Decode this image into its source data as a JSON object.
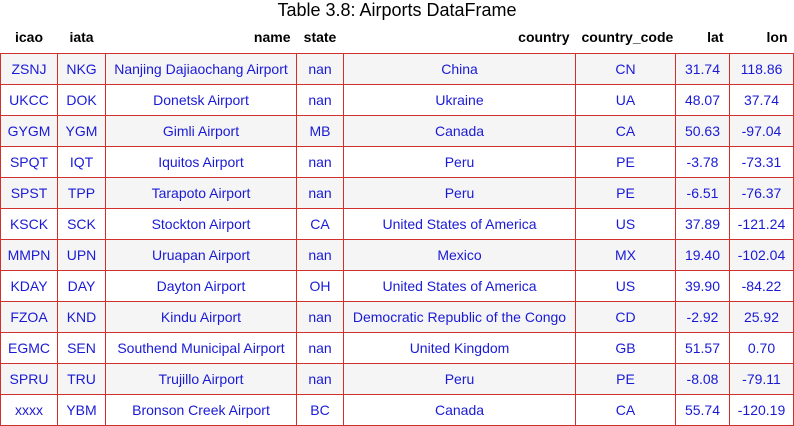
{
  "caption": "Table 3.8: Airports DataFrame",
  "columns": [
    "icao",
    "iata",
    "name",
    "state",
    "country",
    "country_code",
    "lat",
    "lon"
  ],
  "rows": [
    [
      "ZSNJ",
      "NKG",
      "Nanjing Dajiaochang Airport",
      "nan",
      "China",
      "CN",
      "31.74",
      "118.86"
    ],
    [
      "UKCC",
      "DOK",
      "Donetsk Airport",
      "nan",
      "Ukraine",
      "UA",
      "48.07",
      "37.74"
    ],
    [
      "GYGM",
      "YGM",
      "Gimli Airport",
      "MB",
      "Canada",
      "CA",
      "50.63",
      "-97.04"
    ],
    [
      "SPQT",
      "IQT",
      "Iquitos Airport",
      "nan",
      "Peru",
      "PE",
      "-3.78",
      "-73.31"
    ],
    [
      "SPST",
      "TPP",
      "Tarapoto Airport",
      "nan",
      "Peru",
      "PE",
      "-6.51",
      "-76.37"
    ],
    [
      "KSCK",
      "SCK",
      "Stockton Airport",
      "CA",
      "United States of America",
      "US",
      "37.89",
      "-121.24"
    ],
    [
      "MMPN",
      "UPN",
      "Uruapan Airport",
      "nan",
      "Mexico",
      "MX",
      "19.40",
      "-102.04"
    ],
    [
      "KDAY",
      "DAY",
      "Dayton Airport",
      "OH",
      "United States of America",
      "US",
      "39.90",
      "-84.22"
    ],
    [
      "FZOA",
      "KND",
      "Kindu Airport",
      "nan",
      "Democratic Republic of the Congo",
      "CD",
      "-2.92",
      "25.92"
    ],
    [
      "EGMC",
      "SEN",
      "Southend Municipal Airport",
      "nan",
      "United Kingdom",
      "GB",
      "51.57",
      "0.70"
    ],
    [
      "SPRU",
      "TRU",
      "Trujillo Airport",
      "nan",
      "Peru",
      "PE",
      "-8.08",
      "-79.11"
    ],
    [
      "xxxx",
      "YBM",
      "Bronson Creek Airport",
      "BC",
      "Canada",
      "CA",
      "55.74",
      "-120.19"
    ]
  ],
  "colors": {
    "cell_text": "#1a1ad6",
    "cell_border": "#d0312d",
    "stripe": "#f5f5f5"
  }
}
